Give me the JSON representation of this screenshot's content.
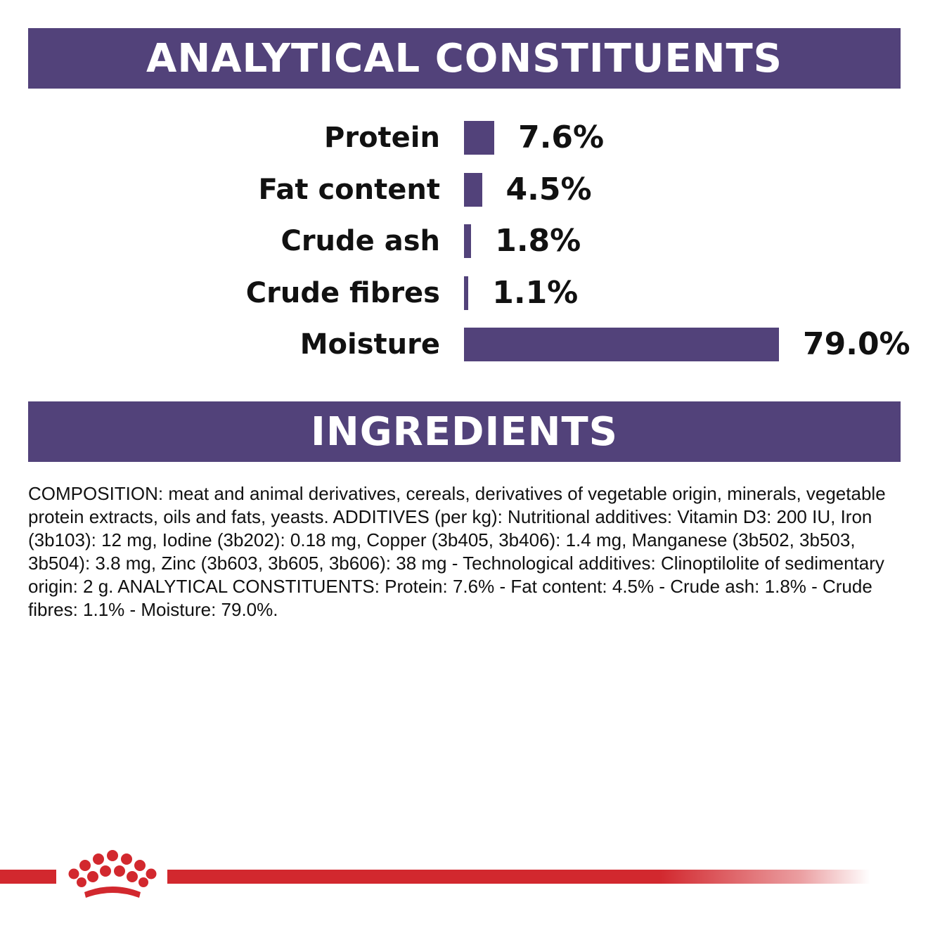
{
  "sections": {
    "analytical_title": "ANALYTICAL CONSTITUENTS",
    "ingredients_title": "INGREDIENTS"
  },
  "chart_data": {
    "type": "bar",
    "orientation": "horizontal",
    "title": "ANALYTICAL CONSTITUENTS",
    "categories": [
      "Protein",
      "Fat content",
      "Crude ash",
      "Crude fibres",
      "Moisture"
    ],
    "values": [
      7.6,
      4.5,
      1.8,
      1.1,
      79.0
    ],
    "value_labels": [
      "7.6%",
      "4.5%",
      "1.8%",
      "1.1%",
      "79.0%"
    ],
    "unit": "%",
    "xlim": [
      0,
      79.0
    ],
    "grid": false,
    "legend": "none",
    "bar_color": "#52427a"
  },
  "ingredients": {
    "composition": "COMPOSITION: meat and animal derivatives, cereals, derivatives of vegetable origin, minerals, vegetable protein extracts, oils and fats, yeasts. ADDITIVES (per kg): Nutritional additives: Vitamin D3: 200 IU, Iron (3b103): 12 mg, Iodine (3b202): 0.18 mg, Copper (3b405, 3b406): 1.4 mg, Manganese (3b502, 3b503, 3b504): 3.8 mg, Zinc (3b603, 3b605, 3b606): 38 mg - Technological additives: Clinoptilolite of sedimentary origin: 2 g. ANALYTICAL CONSTITUENTS: Protein: 7.6% - Fat content: 4.5% - Crude ash: 1.8% - Crude fibres: 1.1% - Moisture: 79.0%."
  },
  "colors": {
    "banner": "#52427a",
    "brand_red": "#d2282e"
  },
  "footer": {
    "logo_icon": "crown-icon"
  }
}
